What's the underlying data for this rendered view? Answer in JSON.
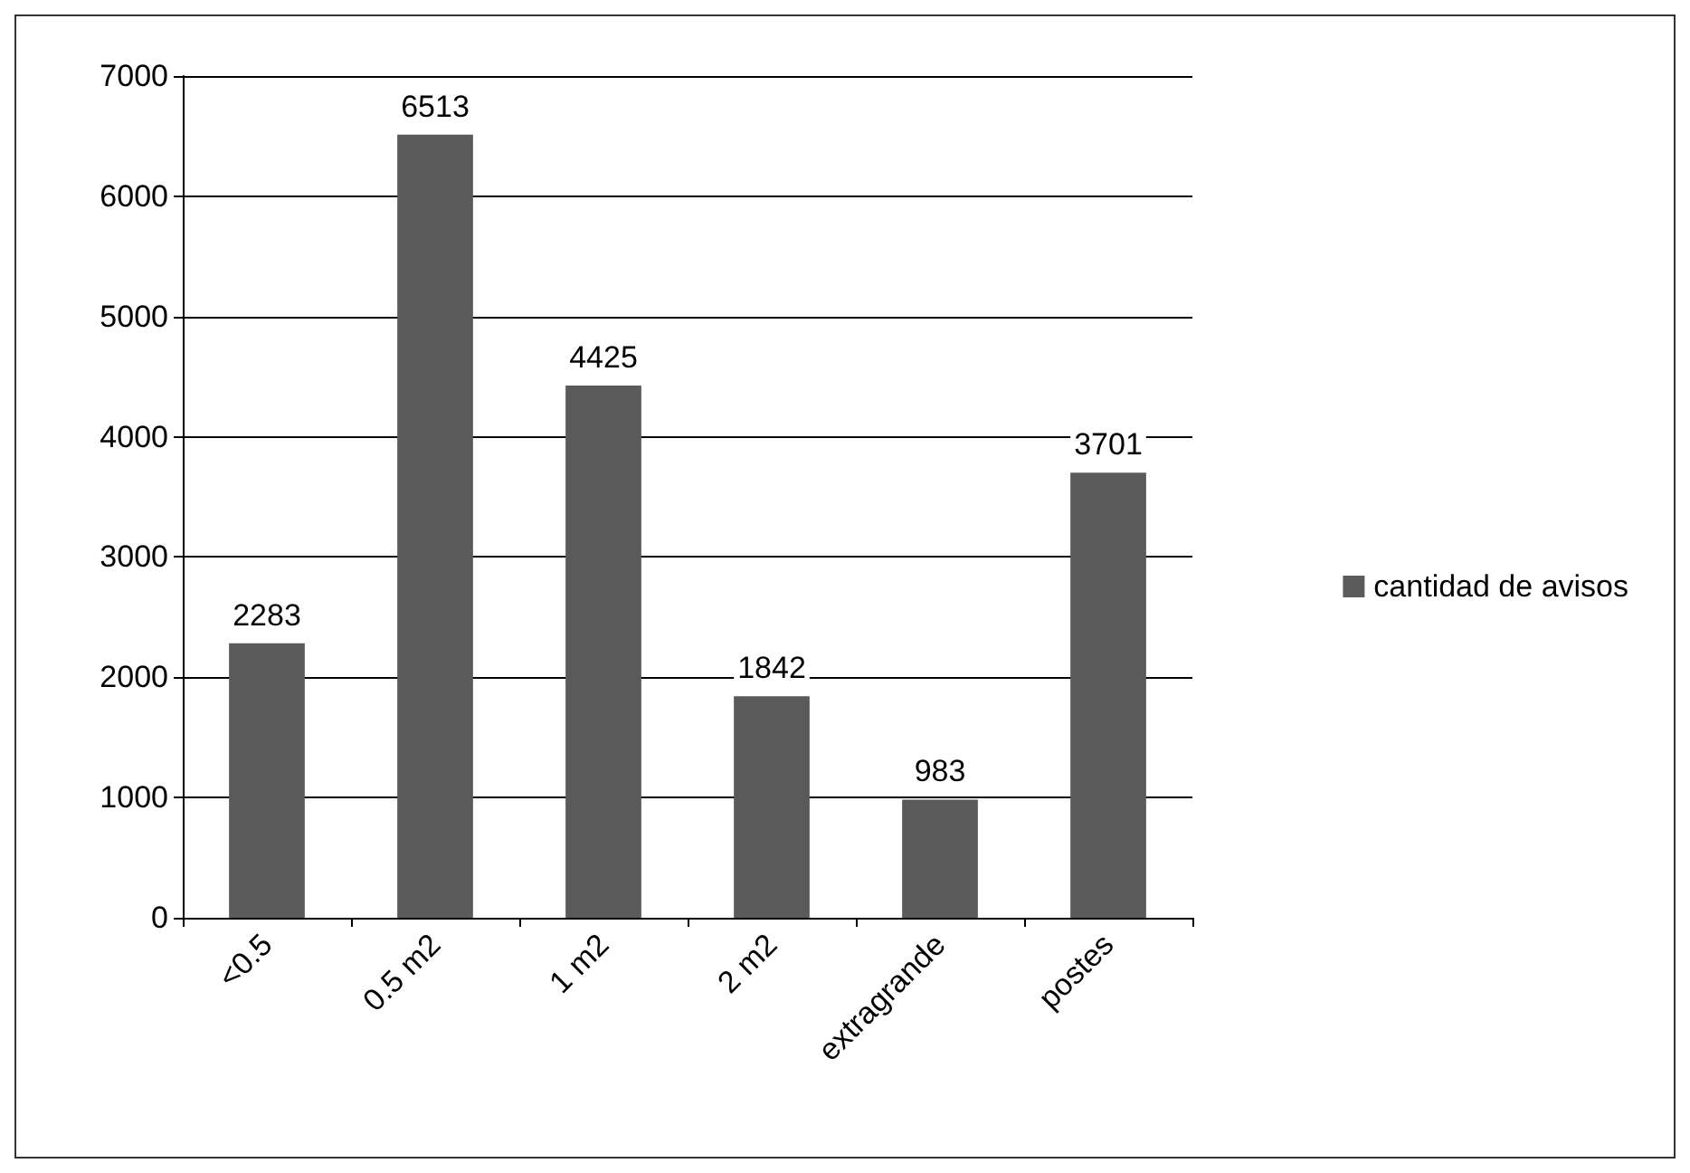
{
  "chart_data": {
    "type": "bar",
    "categories": [
      "<0.5",
      "0.5 m2",
      "1 m2",
      "2 m2",
      "extragrande",
      "postes"
    ],
    "series": [
      {
        "name": "cantidad de avisos",
        "color": "#5a5a5a",
        "values": [
          2283,
          6513,
          4425,
          1842,
          983,
          3701
        ]
      }
    ],
    "ylim": [
      0,
      7000
    ],
    "yticks": [
      0,
      1000,
      2000,
      3000,
      4000,
      5000,
      6000,
      7000
    ],
    "grid": "y",
    "legend": "right",
    "data_labels": true
  }
}
